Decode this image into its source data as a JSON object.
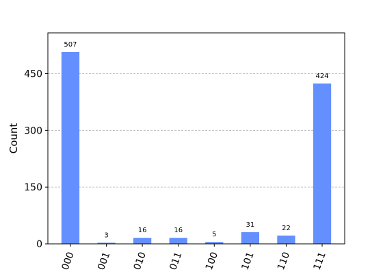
{
  "chart_data": {
    "type": "bar",
    "y_label": "Count",
    "categories": [
      "000",
      "001",
      "010",
      "011",
      "100",
      "101",
      "110",
      "111"
    ],
    "values": [
      507,
      3,
      16,
      16,
      5,
      31,
      22,
      424
    ],
    "color": "#648fff",
    "ylim": [
      0,
      557.7
    ],
    "yticks": [
      0,
      150,
      300,
      450
    ],
    "grid": true
  }
}
